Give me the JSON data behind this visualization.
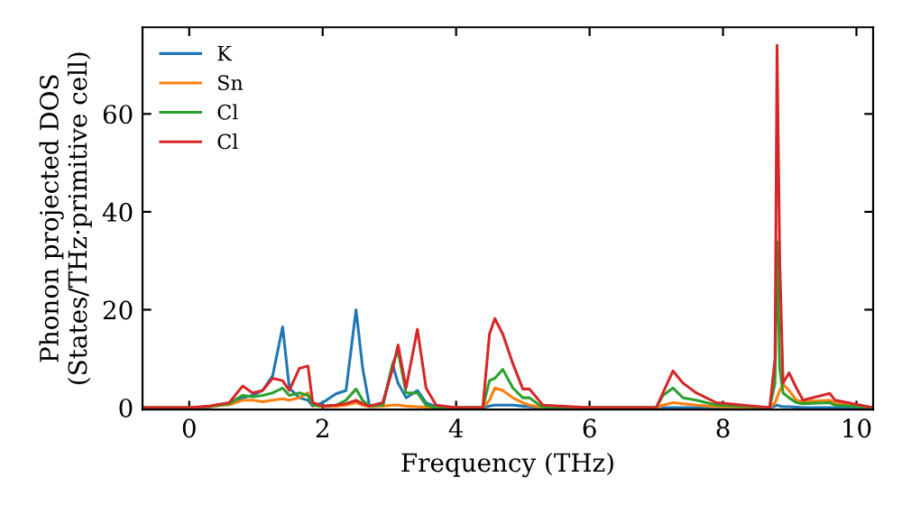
{
  "chart_data": {
    "type": "line",
    "xlabel": "Frequency (THz)",
    "ylabel": "Phonon projected DOS\n(States/THz·primitive cell)",
    "x": [
      -0.7,
      0,
      0.3,
      0.6,
      0.8,
      0.95,
      1.1,
      1.25,
      1.4,
      1.5,
      1.65,
      1.78,
      1.85,
      2.0,
      2.2,
      2.35,
      2.5,
      2.6,
      2.7,
      2.9,
      3.05,
      3.13,
      3.25,
      3.42,
      3.55,
      3.7,
      4.0,
      4.4,
      4.5,
      4.58,
      4.7,
      4.85,
      5.0,
      5.1,
      5.3,
      6.0,
      7.0,
      7.1,
      7.25,
      7.4,
      7.6,
      7.9,
      8.7,
      8.78,
      8.81,
      8.85,
      8.9,
      8.99,
      9.1,
      9.2,
      9.6,
      9.68,
      10.25
    ],
    "series": [
      {
        "name": "K",
        "color": "#1f77b4",
        "values": [
          null,
          null,
          0.2,
          0.8,
          2,
          2.5,
          3.5,
          6.5,
          16.5,
          4,
          2,
          1.5,
          0.3,
          1,
          2.8,
          3.5,
          20,
          8,
          0.5,
          0.3,
          8.7,
          5,
          2,
          3.5,
          1,
          0.2,
          0,
          0,
          0.3,
          0.5,
          0.5,
          0.5,
          0.3,
          0.2,
          0,
          0,
          0,
          0,
          0,
          0,
          0,
          0,
          0,
          0.3,
          0.5,
          0.3,
          0.2,
          0.2,
          0.1,
          0,
          0,
          0,
          0
        ]
      },
      {
        "name": "Sn",
        "color": "#ff7f0e",
        "values": [
          0,
          0,
          0.2,
          0.6,
          1.5,
          1.5,
          1.2,
          1.5,
          1.8,
          1.5,
          2,
          3,
          0.5,
          0.2,
          0.3,
          0.5,
          1,
          0.5,
          0.2,
          0.3,
          0.5,
          0.5,
          0.3,
          0.2,
          0.1,
          0,
          0,
          0,
          1.5,
          4,
          3.5,
          2,
          1,
          0.5,
          0,
          0,
          0,
          0.5,
          1,
          0.8,
          0.5,
          0.2,
          0,
          1,
          2,
          3.5,
          4.8,
          3.5,
          1.5,
          1.2,
          1.5,
          1,
          0
        ]
      },
      {
        "name": "Cl",
        "color": "#2ca02c",
        "values": [
          0,
          0,
          0.2,
          0.8,
          2.5,
          2.2,
          2.5,
          3,
          4,
          2.5,
          3,
          2.5,
          0.5,
          0.3,
          0.5,
          1.5,
          3.8,
          1.5,
          0.3,
          0.5,
          9,
          11.5,
          3,
          3,
          0.5,
          0,
          0,
          0,
          5.5,
          6,
          7.8,
          4,
          2,
          2,
          0,
          0,
          0,
          2.5,
          4,
          2,
          1.5,
          0.5,
          0,
          5,
          33.9,
          8,
          3,
          2,
          1,
          0.8,
          1,
          0.5,
          0
        ]
      },
      {
        "name": "Cl",
        "color": "#d62728",
        "values": [
          0,
          0,
          0.3,
          1,
          4.4,
          3,
          3.5,
          6,
          5.5,
          3.5,
          8,
          8.5,
          1,
          0.3,
          0.5,
          0.8,
          1.5,
          0.8,
          0.3,
          1,
          8,
          12.8,
          4,
          16,
          4,
          0.5,
          0,
          0,
          15,
          18.2,
          15,
          9,
          3.8,
          3.8,
          0.5,
          0,
          0,
          3,
          7.5,
          5,
          3,
          1,
          0,
          10,
          74,
          30,
          5,
          7.1,
          4,
          1.5,
          2.9,
          1.5,
          0
        ]
      }
    ],
    "xlim": [
      -0.7,
      10.25
    ],
    "ylim": [
      -0.4,
      77.7
    ],
    "xticks": [
      0,
      2,
      4,
      6,
      8,
      10
    ],
    "yticks": [
      0,
      20,
      40,
      60
    ],
    "legend": "top left",
    "grid": false
  }
}
